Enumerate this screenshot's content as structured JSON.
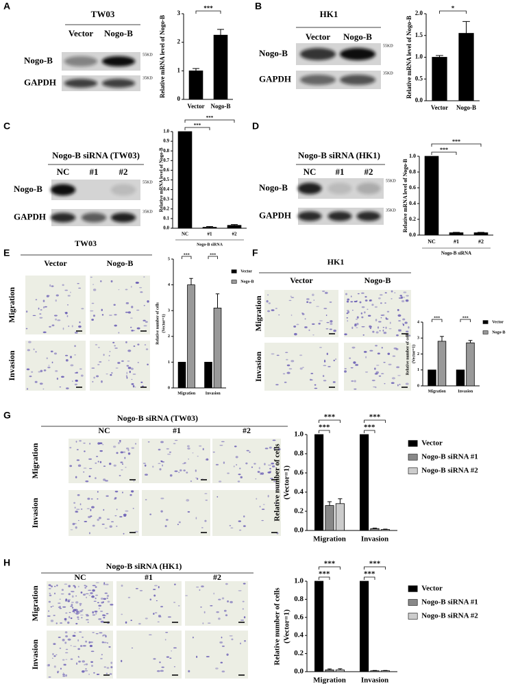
{
  "panels": [
    {
      "letter": "A",
      "title": "TW03",
      "columns": [
        "Vector",
        "Nogo-B"
      ],
      "rows": [
        "Nogo-B",
        "GAPDH"
      ],
      "markers": [
        "55KD",
        "35KD"
      ]
    },
    {
      "letter": "B",
      "title": "HK1",
      "columns": [
        "Vector",
        "Nogo-B"
      ],
      "rows": [
        "Nogo-B",
        "GAPDH"
      ],
      "markers": [
        "55KD",
        "35KD"
      ]
    },
    {
      "letter": "C",
      "title": "Nogo-B siRNA (TW03)",
      "columns": [
        "NC",
        "#1",
        "#2"
      ],
      "rows": [
        "Nogo-B",
        "GAPDH"
      ],
      "markers": [
        "55KD",
        "35KD"
      ]
    },
    {
      "letter": "D",
      "title": "Nogo-B siRNA (HK1)",
      "columns": [
        "NC",
        "#1",
        "#2"
      ],
      "rows": [
        "Nogo-B",
        "GAPDH"
      ],
      "markers": [
        "55KD",
        "35KD"
      ]
    },
    {
      "letter": "E",
      "title": "TW03",
      "columns": [
        "Vector",
        "Nogo-B"
      ],
      "rows": [
        "Migration",
        "Invasion"
      ]
    },
    {
      "letter": "F",
      "title": "HK1",
      "columns": [
        "Vector",
        "Nogo-B"
      ],
      "rows": [
        "Migration",
        "Invasion"
      ]
    },
    {
      "letter": "G",
      "title": "Nogo-B siRNA (TW03)",
      "columns": [
        "NC",
        "#1",
        "#2"
      ],
      "rows": [
        "Migration",
        "Invasion"
      ]
    },
    {
      "letter": "H",
      "title": "Nogo-B siRNA (HK1)",
      "columns": [
        "NC",
        "#1",
        "#2"
      ],
      "rows": [
        "Migration",
        "Invasion"
      ]
    }
  ],
  "chart_data": [
    {
      "type": "bar",
      "ylabel": "Relative mRNA level of Nogo-B",
      "categories": [
        "Vector",
        "Nogo-B"
      ],
      "series": [
        {
          "color": "#000000",
          "values": [
            1.0,
            2.25
          ],
          "errors": [
            0.08,
            0.2
          ]
        }
      ],
      "ylim": [
        0,
        3
      ],
      "yticks": [
        0,
        1,
        2,
        3
      ],
      "significance": [
        "***"
      ]
    },
    {
      "type": "bar",
      "ylabel": "Relative mRNA level of Nogo-B",
      "categories": [
        "Vector",
        "Nogo-B"
      ],
      "series": [
        {
          "color": "#000000",
          "values": [
            1.0,
            1.55
          ],
          "errors": [
            0.04,
            0.27
          ]
        }
      ],
      "ylim": [
        0,
        2
      ],
      "yticks": [
        {
          "value": 0,
          "label": "0.0"
        },
        0.5,
        {
          "value": 1,
          "label": "1.0"
        },
        1.5,
        {
          "value": 2,
          "label": "2.0"
        }
      ],
      "significance": [
        "*"
      ]
    },
    {
      "type": "bar",
      "ylabel": "Relative mRNA level of Nogo-B",
      "xlabel": "Nogo-B siRNA",
      "categories": [
        "NC",
        "#1",
        "#2"
      ],
      "series": [
        {
          "color": "#000000",
          "values": [
            1.0,
            0.01,
            0.03
          ],
          "errors": [
            0,
            0.008,
            0.008
          ]
        }
      ],
      "ylim": [
        0,
        1
      ],
      "yticks": [
        {
          "value": 0,
          "label": "0.0"
        },
        0.1,
        0.2,
        0.3,
        0.4,
        0.5,
        0.6,
        0.7,
        0.8,
        0.9,
        {
          "value": 1,
          "label": "1.0"
        }
      ],
      "significance": [
        "***",
        "***"
      ]
    },
    {
      "type": "bar",
      "ylabel": "Relative mRNA level of Nogo-B",
      "xlabel": "Nogo-B siRNA",
      "categories": [
        "NC",
        "#1",
        "#2"
      ],
      "series": [
        {
          "color": "#000000",
          "values": [
            1.0,
            0.03,
            0.03
          ],
          "errors": [
            0,
            0.005,
            0.005
          ]
        }
      ],
      "ylim": [
        0,
        1
      ],
      "yticks": [
        {
          "value": 0,
          "label": "0.0"
        },
        0.2,
        0.4,
        0.6,
        0.8,
        {
          "value": 1,
          "label": "1.0"
        }
      ],
      "significance": [
        "***",
        "***"
      ]
    },
    {
      "type": "bar",
      "ylabel": [
        "Relative number of cells",
        "(Vector=1)"
      ],
      "categories": [
        "Migration",
        "Invasion"
      ],
      "series": [
        {
          "name": "Vector",
          "color": "#000000",
          "values": [
            1,
            1
          ],
          "errors": [
            0,
            0
          ]
        },
        {
          "name": "Nogo-B",
          "color": "#999999",
          "values": [
            4.0,
            3.1
          ],
          "errors": [
            0.25,
            0.55
          ]
        }
      ],
      "ylim": [
        0,
        5
      ],
      "yticks": [
        0,
        1,
        2,
        3,
        4,
        5
      ],
      "significance": [
        [
          "***"
        ],
        [
          "***"
        ]
      ]
    },
    {
      "type": "bar",
      "ylabel": [
        "Relative number of cells",
        "(Vector=1)"
      ],
      "categories": [
        "Migration",
        "Invasion"
      ],
      "series": [
        {
          "name": "Vector",
          "color": "#000000",
          "values": [
            1,
            1
          ],
          "errors": [
            0,
            0
          ]
        },
        {
          "name": "Nogo-B",
          "color": "#999999",
          "values": [
            2.8,
            2.7
          ],
          "errors": [
            0.3,
            0.15
          ]
        }
      ],
      "ylim": [
        0,
        4
      ],
      "yticks": [
        0,
        1,
        2,
        3,
        4
      ],
      "significance": [
        [
          "***"
        ],
        [
          "***"
        ]
      ]
    },
    {
      "type": "bar",
      "ylabel": [
        "Relative number of cells",
        "(Vector=1)"
      ],
      "categories": [
        "Migration",
        "Invasion"
      ],
      "series": [
        {
          "name": "Vector",
          "color": "#000000",
          "values": [
            1.0,
            1.0
          ],
          "errors": [
            0,
            0
          ]
        },
        {
          "name": "Nogo-B siRNA #1",
          "color": "#888888",
          "values": [
            0.26,
            0.02
          ],
          "errors": [
            0.04,
            0.005
          ]
        },
        {
          "name": "Nogo-B siRNA #2",
          "color": "#cccccc",
          "values": [
            0.28,
            0.01
          ],
          "errors": [
            0.05,
            0.004
          ]
        }
      ],
      "ylim": [
        0,
        1
      ],
      "yticks": [
        {
          "value": 0,
          "label": "0.0"
        },
        0.2,
        0.4,
        0.6,
        0.8,
        {
          "value": 1,
          "label": "1.0"
        }
      ],
      "significance": [
        [
          "***",
          "***"
        ],
        [
          "***",
          "***"
        ]
      ]
    },
    {
      "type": "bar",
      "ylabel": [
        "Relative number of cells",
        "(Vector=1)"
      ],
      "categories": [
        "Migration",
        "Invasion"
      ],
      "series": [
        {
          "name": "Vector",
          "color": "#000000",
          "values": [
            1.0,
            1.0
          ],
          "errors": [
            0,
            0
          ]
        },
        {
          "name": "Nogo-B siRNA #1",
          "color": "#888888",
          "values": [
            0.02,
            0.01
          ],
          "errors": [
            0.01,
            0.003
          ]
        },
        {
          "name": "Nogo-B siRNA #2",
          "color": "#cccccc",
          "values": [
            0.02,
            0.01
          ],
          "errors": [
            0.012,
            0.003
          ]
        }
      ],
      "ylim": [
        0,
        1
      ],
      "yticks": [
        {
          "value": 0,
          "label": "0.0"
        },
        0.2,
        0.4,
        0.6,
        0.8,
        {
          "value": 1,
          "label": "1.0"
        }
      ],
      "significance": [
        [
          "***",
          "***"
        ],
        [
          "***",
          "***"
        ]
      ]
    }
  ]
}
